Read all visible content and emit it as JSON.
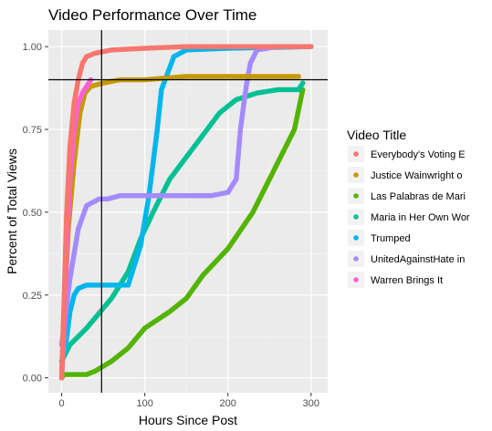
{
  "chart_data": {
    "type": "scatter",
    "title": "Video Performance Over Time",
    "xlabel": "Hours Since Post",
    "ylabel": "Percent of Total Views",
    "xlim": [
      -16,
      320
    ],
    "ylim": [
      -0.045,
      1.05
    ],
    "x_ticks": [
      0,
      100,
      200,
      300
    ],
    "y_ticks": [
      0.0,
      0.25,
      0.5,
      0.75,
      1.0
    ],
    "y_tick_labels": [
      "0.00",
      "0.25",
      "0.50",
      "0.75",
      "1.00"
    ],
    "grid": true,
    "reference_lines": {
      "vline_x": 48,
      "hline_y": 0.9
    },
    "legend": {
      "title": "Video Title",
      "position": "right",
      "entries": [
        {
          "label": "Everybody's Voting E",
          "color": "#F8766D"
        },
        {
          "label": "Justice Wainwright o",
          "color": "#C49A00"
        },
        {
          "label": "Las Palabras de Mari",
          "color": "#53B400"
        },
        {
          "label": "Maria in Her Own Wor",
          "color": "#00C094"
        },
        {
          "label": "Trumped",
          "color": "#00B6EB"
        },
        {
          "label": "UnitedAgainstHate in",
          "color": "#A58AFF"
        },
        {
          "label": "Warren Brings It",
          "color": "#FB61D7"
        }
      ]
    },
    "series": [
      {
        "color": "#53B400",
        "points": [
          [
            0,
            0.0
          ],
          [
            3,
            0.01
          ],
          [
            30,
            0.01
          ],
          [
            40,
            0.02
          ],
          [
            60,
            0.05
          ],
          [
            80,
            0.09
          ],
          [
            100,
            0.15
          ],
          [
            130,
            0.2
          ],
          [
            150,
            0.24
          ],
          [
            170,
            0.31
          ],
          [
            200,
            0.39
          ],
          [
            230,
            0.5
          ],
          [
            260,
            0.65
          ],
          [
            280,
            0.75
          ],
          [
            290,
            0.87
          ]
        ]
      },
      {
        "color": "#00C094",
        "points": [
          [
            0,
            0.05
          ],
          [
            10,
            0.1
          ],
          [
            30,
            0.15
          ],
          [
            60,
            0.24
          ],
          [
            80,
            0.32
          ],
          [
            95,
            0.42
          ],
          [
            110,
            0.5
          ],
          [
            130,
            0.6
          ],
          [
            160,
            0.7
          ],
          [
            190,
            0.8
          ],
          [
            210,
            0.84
          ],
          [
            235,
            0.86
          ],
          [
            260,
            0.87
          ],
          [
            285,
            0.87
          ],
          [
            290,
            0.89
          ]
        ]
      },
      {
        "color": "#00B6EB",
        "points": [
          [
            0,
            0.05
          ],
          [
            5,
            0.1
          ],
          [
            10,
            0.2
          ],
          [
            15,
            0.25
          ],
          [
            20,
            0.27
          ],
          [
            30,
            0.28
          ],
          [
            60,
            0.28
          ],
          [
            80,
            0.28
          ],
          [
            95,
            0.4
          ],
          [
            105,
            0.55
          ],
          [
            115,
            0.75
          ],
          [
            120,
            0.87
          ],
          [
            135,
            0.97
          ],
          [
            150,
            0.99
          ],
          [
            200,
            0.995
          ],
          [
            300,
            1.0
          ]
        ]
      },
      {
        "color": "#A58AFF",
        "points": [
          [
            0,
            0.1
          ],
          [
            5,
            0.2
          ],
          [
            10,
            0.3
          ],
          [
            20,
            0.45
          ],
          [
            30,
            0.52
          ],
          [
            45,
            0.54
          ],
          [
            55,
            0.54
          ],
          [
            70,
            0.55
          ],
          [
            100,
            0.55
          ],
          [
            130,
            0.55
          ],
          [
            160,
            0.55
          ],
          [
            180,
            0.55
          ],
          [
            200,
            0.56
          ],
          [
            210,
            0.6
          ],
          [
            215,
            0.75
          ],
          [
            222,
            0.88
          ],
          [
            227,
            0.95
          ],
          [
            235,
            0.99
          ],
          [
            260,
            1.0
          ],
          [
            280,
            1.0
          ]
        ]
      },
      {
        "color": "#C49A00",
        "points": [
          [
            0,
            0.0
          ],
          [
            3,
            0.2
          ],
          [
            8,
            0.45
          ],
          [
            15,
            0.65
          ],
          [
            22,
            0.8
          ],
          [
            28,
            0.86
          ],
          [
            35,
            0.88
          ],
          [
            50,
            0.89
          ],
          [
            70,
            0.9
          ],
          [
            100,
            0.9
          ],
          [
            150,
            0.91
          ],
          [
            200,
            0.91
          ],
          [
            250,
            0.91
          ],
          [
            285,
            0.91
          ]
        ]
      },
      {
        "color": "#FB61D7",
        "points": [
          [
            0,
            0.0
          ],
          [
            3,
            0.15
          ],
          [
            6,
            0.4
          ],
          [
            10,
            0.6
          ],
          [
            15,
            0.75
          ],
          [
            20,
            0.83
          ],
          [
            25,
            0.86
          ],
          [
            30,
            0.88
          ],
          [
            35,
            0.9
          ]
        ]
      },
      {
        "color": "#F8766D",
        "points": [
          [
            0,
            0.0
          ],
          [
            3,
            0.25
          ],
          [
            6,
            0.5
          ],
          [
            10,
            0.7
          ],
          [
            15,
            0.83
          ],
          [
            20,
            0.9
          ],
          [
            25,
            0.95
          ],
          [
            30,
            0.97
          ],
          [
            40,
            0.98
          ],
          [
            60,
            0.99
          ],
          [
            100,
            0.995
          ],
          [
            150,
            1.0
          ],
          [
            200,
            1.0
          ],
          [
            250,
            1.0
          ],
          [
            300,
            1.0
          ]
        ]
      }
    ]
  }
}
